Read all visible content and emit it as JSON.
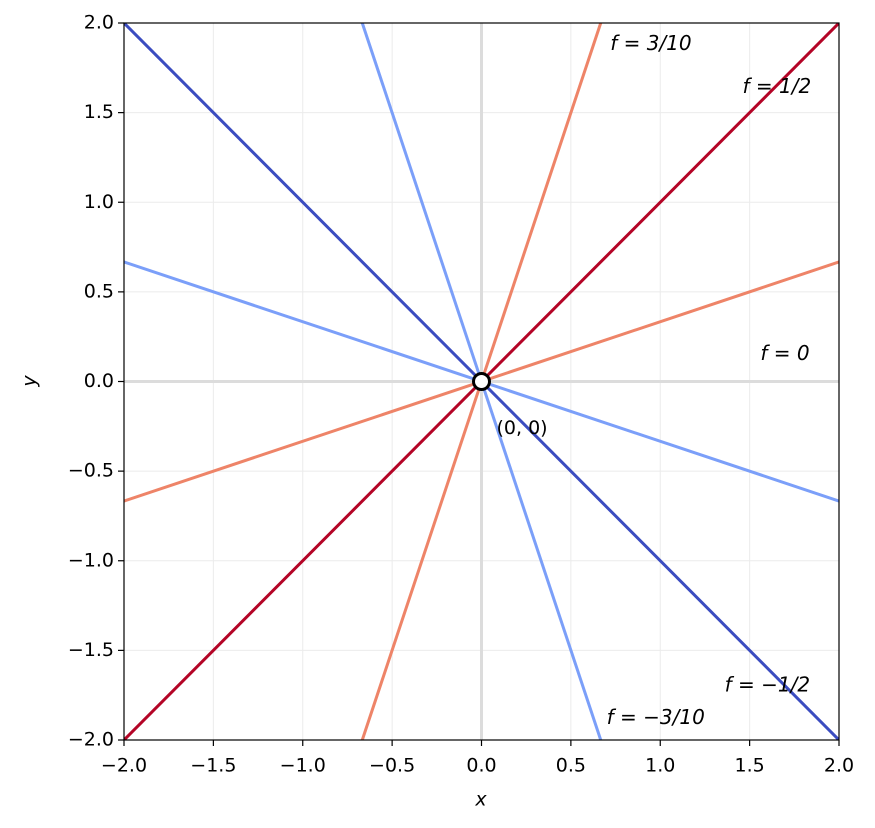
{
  "chart_data": {
    "type": "line",
    "xlabel": "x",
    "ylabel": "y",
    "xlim": [
      -2,
      2
    ],
    "ylim": [
      -2,
      2
    ],
    "xticks": [
      {
        "value": -2,
        "label": "−2.0"
      },
      {
        "value": -1.5,
        "label": "−1.5"
      },
      {
        "value": -1,
        "label": "−1.0"
      },
      {
        "value": -0.5,
        "label": "−0.5"
      },
      {
        "value": 0,
        "label": "0.0"
      },
      0.5,
      {
        "value": 1,
        "label": "1.0"
      },
      1.5,
      {
        "value": 2,
        "label": "2.0"
      }
    ],
    "yticks": [
      {
        "value": -2,
        "label": "−2.0"
      },
      {
        "value": -1.5,
        "label": "−1.5"
      },
      {
        "value": -1,
        "label": "−1.0"
      },
      {
        "value": -0.5,
        "label": "−0.5"
      },
      {
        "value": 0,
        "label": "0.0"
      },
      0.5,
      {
        "value": 1,
        "label": "1.0"
      },
      1.5,
      {
        "value": 2,
        "label": "2.0"
      }
    ],
    "grid": true,
    "series": [
      {
        "color": "#7b9ff9",
        "x": [
          -2,
          2
        ],
        "values": [
          0.667,
          -0.667
        ]
      },
      {
        "color": "#7b9ff9",
        "x": [
          -0.667,
          0.667
        ],
        "values": [
          2,
          -2
        ]
      },
      {
        "color": "#3b4cc0",
        "x": [
          -2,
          2
        ],
        "values": [
          2,
          -2
        ]
      },
      {
        "color": "#ee8468",
        "x": [
          -2,
          2
        ],
        "values": [
          -0.667,
          0.667
        ]
      },
      {
        "color": "#ee8468",
        "x": [
          -0.667,
          0.667
        ],
        "values": [
          -2,
          2
        ]
      },
      {
        "color": "#b40426",
        "x": [
          -2,
          2
        ],
        "values": [
          -2,
          2
        ]
      }
    ],
    "points": [
      {
        "x": 0,
        "y": 0,
        "label": "(0, 0)"
      }
    ],
    "annotations": [
      {
        "text": "f = 3/10",
        "x": 0.72,
        "y": 1.88
      },
      {
        "text": "f = 1/2",
        "x": 1.46,
        "y": 1.64
      },
      {
        "text": "f = 0",
        "x": 1.56,
        "y": 0.15
      },
      {
        "text": "f = −1/2",
        "x": 1.36,
        "y": -1.7
      },
      {
        "text": "f = −3/10",
        "x": 0.7,
        "y": -1.88
      }
    ]
  }
}
